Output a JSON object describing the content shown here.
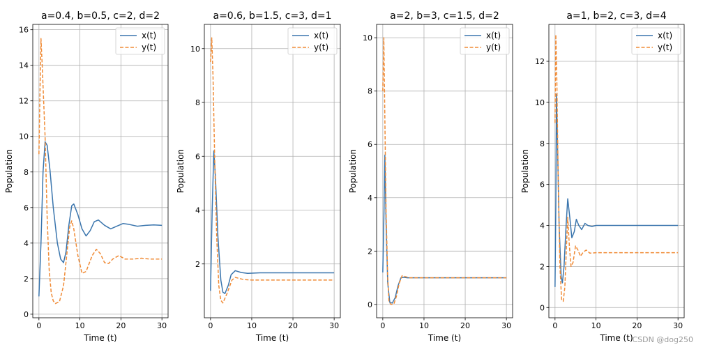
{
  "watermark": "CSDN @dog250",
  "colors": {
    "x_series": "#3a75ad",
    "y_series": "#f08b36",
    "grid": "#b0b0b0"
  },
  "chart_data": [
    {
      "type": "line",
      "title": "a=0.4, b=0.5, c=2, d=2",
      "xlabel": "Time (t)",
      "ylabel": "Population",
      "xlim": [
        -1.5,
        31.5
      ],
      "ylim": [
        -0.2,
        16.3
      ],
      "xticks": [
        0,
        10,
        20,
        30
      ],
      "yticks": [
        0,
        2,
        4,
        6,
        8,
        10,
        12,
        14,
        16
      ],
      "grid": true,
      "legend": "top-right",
      "series": [
        {
          "name": "x(t)",
          "style": "solid",
          "points": [
            [
              0,
              1
            ],
            [
              0.5,
              4
            ],
            [
              1,
              8
            ],
            [
              1.5,
              9.7
            ],
            [
              2,
              9.5
            ],
            [
              2.7,
              8.1
            ],
            [
              3.5,
              6
            ],
            [
              4.5,
              4
            ],
            [
              5.3,
              3.1
            ],
            [
              6,
              2.9
            ],
            [
              6.6,
              3.5
            ],
            [
              7.3,
              5
            ],
            [
              8,
              6.1
            ],
            [
              8.5,
              6.2
            ],
            [
              9.5,
              5.6
            ],
            [
              10.5,
              4.8
            ],
            [
              11.5,
              4.4
            ],
            [
              12.5,
              4.7
            ],
            [
              13.5,
              5.2
            ],
            [
              14.5,
              5.3
            ],
            [
              16,
              5
            ],
            [
              17.5,
              4.8
            ],
            [
              19,
              4.95
            ],
            [
              20.5,
              5.1
            ],
            [
              22,
              5.05
            ],
            [
              24,
              4.95
            ],
            [
              26,
              5
            ],
            [
              28,
              5.02
            ],
            [
              30,
              5
            ]
          ]
        },
        {
          "name": "y(t)",
          "style": "dashed",
          "points": [
            [
              0,
              9
            ],
            [
              0.3,
              13
            ],
            [
              0.5,
              15.5
            ],
            [
              0.8,
              14
            ],
            [
              1.5,
              10
            ],
            [
              2,
              5.5
            ],
            [
              2.5,
              2.5
            ],
            [
              3,
              1.2
            ],
            [
              3.5,
              0.75
            ],
            [
              4,
              0.6
            ],
            [
              5,
              0.7
            ],
            [
              6,
              1.6
            ],
            [
              7,
              3.8
            ],
            [
              7.5,
              4.9
            ],
            [
              8,
              5.25
            ],
            [
              8.5,
              4.8
            ],
            [
              9.5,
              3.3
            ],
            [
              10.5,
              2.3
            ],
            [
              11.5,
              2.4
            ],
            [
              13,
              3.3
            ],
            [
              14,
              3.65
            ],
            [
              15,
              3.4
            ],
            [
              16,
              2.9
            ],
            [
              17,
              2.85
            ],
            [
              18,
              3.1
            ],
            [
              19.5,
              3.3
            ],
            [
              21,
              3.1
            ],
            [
              23,
              3.1
            ],
            [
              25,
              3.15
            ],
            [
              27,
              3.1
            ],
            [
              30,
              3.1
            ]
          ]
        }
      ]
    },
    {
      "type": "line",
      "title": "a=0.6, b=1.5, c=3, d=1",
      "xlabel": "Time (t)",
      "ylabel": "Population",
      "xlim": [
        -1.5,
        31.5
      ],
      "ylim": [
        0,
        10.9
      ],
      "xticks": [
        0,
        10,
        20,
        30
      ],
      "yticks": [
        2,
        4,
        6,
        8,
        10
      ],
      "grid": true,
      "legend": "top-right",
      "series": [
        {
          "name": "x(t)",
          "style": "solid",
          "points": [
            [
              0,
              1
            ],
            [
              0.4,
              4
            ],
            [
              0.8,
              6.2
            ],
            [
              1.2,
              5.2
            ],
            [
              1.8,
              3
            ],
            [
              2.5,
              1.4
            ],
            [
              3,
              0.95
            ],
            [
              3.5,
              0.9
            ],
            [
              4.3,
              1.2
            ],
            [
              5,
              1.6
            ],
            [
              6,
              1.75
            ],
            [
              7.5,
              1.68
            ],
            [
              9,
              1.65
            ],
            [
              12,
              1.67
            ],
            [
              15,
              1.67
            ],
            [
              20,
              1.67
            ],
            [
              25,
              1.67
            ],
            [
              30,
              1.67
            ]
          ]
        },
        {
          "name": "y(t)",
          "style": "dashed",
          "points": [
            [
              0,
              9.5
            ],
            [
              0.3,
              10.4
            ],
            [
              0.6,
              9
            ],
            [
              1,
              6
            ],
            [
              1.5,
              3
            ],
            [
              2,
              1.2
            ],
            [
              2.5,
              0.65
            ],
            [
              3,
              0.55
            ],
            [
              4,
              0.9
            ],
            [
              5.2,
              1.4
            ],
            [
              6,
              1.5
            ],
            [
              8,
              1.42
            ],
            [
              10,
              1.4
            ],
            [
              15,
              1.4
            ],
            [
              20,
              1.4
            ],
            [
              25,
              1.4
            ],
            [
              30,
              1.4
            ]
          ]
        }
      ]
    },
    {
      "type": "line",
      "title": "a=2, b=3, c=1.5, d=2",
      "xlabel": "Time (t)",
      "ylabel": "Population",
      "xlim": [
        -1.5,
        31.5
      ],
      "ylim": [
        -0.5,
        10.5
      ],
      "xticks": [
        0,
        10,
        20,
        30
      ],
      "yticks": [
        0,
        2,
        4,
        6,
        8,
        10
      ],
      "grid": true,
      "legend": "top-right",
      "series": [
        {
          "name": "x(t)",
          "style": "solid",
          "points": [
            [
              0,
              1.2
            ],
            [
              0.3,
              3.5
            ],
            [
              0.5,
              5.6
            ],
            [
              0.8,
              3
            ],
            [
              1.2,
              0.8
            ],
            [
              1.7,
              0.08
            ],
            [
              2.3,
              0.05
            ],
            [
              3,
              0.25
            ],
            [
              3.7,
              0.7
            ],
            [
              4.4,
              1
            ],
            [
              5,
              1.02
            ],
            [
              6,
              1
            ],
            [
              8,
              1
            ],
            [
              12,
              1
            ],
            [
              16,
              1
            ],
            [
              20,
              1
            ],
            [
              25,
              1
            ],
            [
              30,
              1
            ]
          ]
        },
        {
          "name": "y(t)",
          "style": "dashed",
          "points": [
            [
              0,
              8
            ],
            [
              0.25,
              10
            ],
            [
              0.5,
              7
            ],
            [
              0.8,
              3.5
            ],
            [
              1.2,
              1
            ],
            [
              1.5,
              0.1
            ],
            [
              2,
              0
            ],
            [
              2.7,
              0.02
            ],
            [
              3.3,
              0.3
            ],
            [
              4,
              0.8
            ],
            [
              4.7,
              1.08
            ],
            [
              5.3,
              1.05
            ],
            [
              6.5,
              1
            ],
            [
              10,
              1
            ],
            [
              15,
              1
            ],
            [
              20,
              1
            ],
            [
              25,
              1
            ],
            [
              30,
              1
            ]
          ]
        }
      ]
    },
    {
      "type": "line",
      "title": "a=1, b=2, c=3, d=4",
      "xlabel": "Time (t)",
      "ylabel": "Population",
      "xlim": [
        -1.5,
        31.5
      ],
      "ylim": [
        -0.5,
        13.8
      ],
      "xticks": [
        0,
        10,
        20,
        30
      ],
      "yticks": [
        0,
        2,
        4,
        6,
        8,
        10,
        12
      ],
      "grid": true,
      "legend": "top-right",
      "series": [
        {
          "name": "x(t)",
          "style": "solid",
          "points": [
            [
              0,
              1
            ],
            [
              0.2,
              5
            ],
            [
              0.35,
              10.4
            ],
            [
              0.6,
              8
            ],
            [
              1,
              4
            ],
            [
              1.5,
              1.5
            ],
            [
              1.8,
              1.2
            ],
            [
              2.2,
              2
            ],
            [
              2.7,
              4
            ],
            [
              3.1,
              5.3
            ],
            [
              3.6,
              4.4
            ],
            [
              4.1,
              3.4
            ],
            [
              4.7,
              3.7
            ],
            [
              5.2,
              4.3
            ],
            [
              5.8,
              4
            ],
            [
              6.5,
              3.8
            ],
            [
              7.3,
              4.1
            ],
            [
              8,
              4
            ],
            [
              9,
              3.95
            ],
            [
              10,
              4
            ],
            [
              15,
              4
            ],
            [
              20,
              4
            ],
            [
              25,
              4
            ],
            [
              30,
              4
            ]
          ]
        },
        {
          "name": "y(t)",
          "style": "dashed",
          "points": [
            [
              0,
              9
            ],
            [
              0.2,
              13.3
            ],
            [
              0.45,
              11
            ],
            [
              0.8,
              6
            ],
            [
              1.2,
              2
            ],
            [
              1.6,
              0.4
            ],
            [
              2,
              0.3
            ],
            [
              2.4,
              1
            ],
            [
              2.8,
              3
            ],
            [
              3.1,
              4.4
            ],
            [
              3.5,
              3
            ],
            [
              3.9,
              2
            ],
            [
              4.4,
              2.2
            ],
            [
              5,
              3
            ],
            [
              5.6,
              2.8
            ],
            [
              6.2,
              2.5
            ],
            [
              6.9,
              2.7
            ],
            [
              7.6,
              2.8
            ],
            [
              8.5,
              2.65
            ],
            [
              10,
              2.67
            ],
            [
              15,
              2.67
            ],
            [
              20,
              2.67
            ],
            [
              25,
              2.67
            ],
            [
              30,
              2.67
            ]
          ]
        }
      ]
    }
  ]
}
